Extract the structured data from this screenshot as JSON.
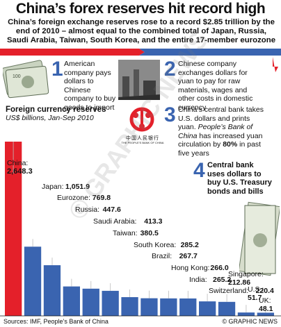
{
  "title": "China’s forex reserves hit record high",
  "subtitle": "China’s foreign exchange reserves rose to a record $2.85 trillion by the end of 2010 – almost equal to the combined total of Japan, Russia, Saudi Arabia, Taiwan, South Korea, and the entire 17-member eurozone",
  "steps": [
    {
      "num": "1",
      "text": "American company pays dollars to Chinese company to buy goods to import"
    },
    {
      "num": "2",
      "text": "Chinese company exchanges dollars for yuan to pay for raw materials, wages and other costs in domestic currency"
    },
    {
      "num": "3",
      "text_a": "China’s central bank takes U.S. dollars and prints yuan. ",
      "text_b": "People’s Bank of China",
      "text_c": " has increased yuan circulation by ",
      "text_d": "80%",
      "text_e": " in past five years"
    },
    {
      "num": "4",
      "text": "Central bank uses dollars to buy U.S. Treasury bonds and bills"
    }
  ],
  "bank_logo_text": "中国人民银行",
  "bank_logo_sub": "THE PEOPLE’S BANK OF CHINA",
  "watermark": "© GRAPHIC NEWS",
  "source": "Sources: IMF, People’s Bank of China",
  "credit": "© GRAPHIC NEWS",
  "colors": {
    "red": "#e4202a",
    "blue": "#3a64b0",
    "text": "#111111"
  },
  "chart_data": {
    "type": "bar",
    "title": "Foreign currency reserves",
    "subtitle": "US$ billions, Jan-Sep 2010",
    "categories": [
      "China",
      "Japan",
      "Eurozone",
      "Russia",
      "Saudi Arabia",
      "Taiwan",
      "South Korea",
      "Brazil",
      "Hong Kong",
      "India",
      "Switzerland",
      "Singapore",
      "U.S.",
      "UK"
    ],
    "values": [
      2648.3,
      1051.9,
      769.8,
      447.6,
      413.3,
      380.5,
      285.2,
      267.7,
      266.0,
      265.2,
      220.4,
      212.86,
      51.7,
      48.1
    ],
    "labels": [
      "2,648.3",
      "1,051.9",
      "769.8",
      "447.6",
      "413.3",
      "380.5",
      "285.2",
      "267.7",
      "266.0",
      "265.2",
      "220.4",
      "212.86",
      "51.7",
      "48.1"
    ],
    "ylim": [
      0,
      2648.3
    ],
    "grid": false
  }
}
